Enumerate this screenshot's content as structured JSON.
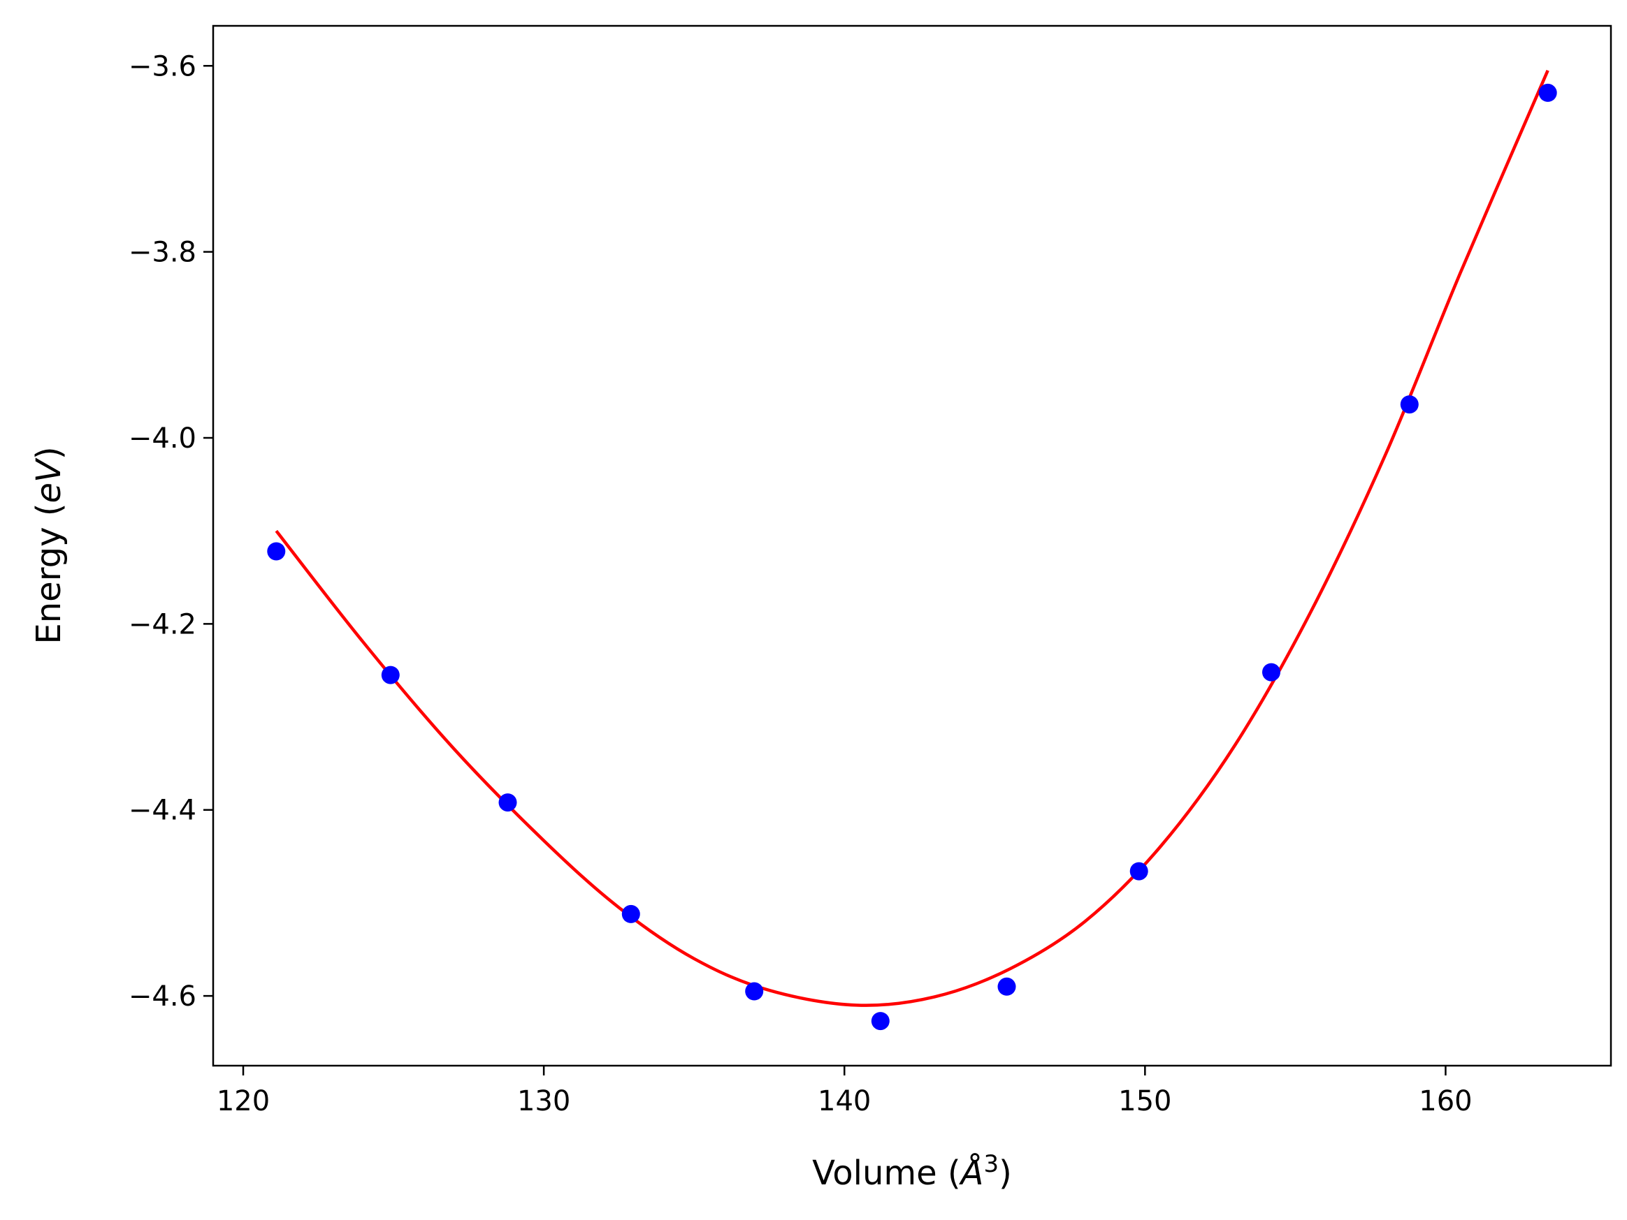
{
  "chart_data": {
    "type": "scatter",
    "xlabel": {
      "prefix": "Volume (",
      "symbol": "Å",
      "sup": "3",
      "suffix": ")"
    },
    "ylabel": {
      "prefix": "Energy (",
      "symbol": "eV",
      "suffix": ")"
    },
    "xlim": [
      119,
      165.5
    ],
    "ylim": [
      -4.675,
      -3.557
    ],
    "xticks": [
      120,
      130,
      140,
      150,
      160
    ],
    "yticks": [
      -3.6,
      -3.8,
      -4.0,
      -4.2,
      -4.4,
      -4.6
    ],
    "xtick_labels": [
      "120",
      "130",
      "140",
      "150",
      "160"
    ],
    "ytick_labels": [
      "−3.6",
      "−3.8",
      "−4.0",
      "−4.2",
      "−4.4",
      "−4.6"
    ],
    "grid": false,
    "series": [
      {
        "type": "scatter",
        "color": "#0000ff",
        "x": [
          121.1,
          124.9,
          128.8,
          132.9,
          137.0,
          141.2,
          145.4,
          149.8,
          154.2,
          158.8,
          163.4
        ],
        "y": [
          -4.122,
          -4.255,
          -4.392,
          -4.512,
          -4.595,
          -4.627,
          -4.59,
          -4.466,
          -4.252,
          -3.964,
          -3.629
        ]
      },
      {
        "type": "line",
        "color": "#ff0000",
        "x": [
          121.1,
          124.0,
          127.0,
          130.0,
          132.5,
          135.0,
          137.5,
          140.4,
          143.0,
          145.5,
          148.0,
          150.5,
          153.0,
          155.5,
          158.0,
          160.5,
          163.4
        ],
        "y": [
          -4.1,
          -4.22,
          -4.334,
          -4.433,
          -4.505,
          -4.56,
          -4.594,
          -4.61,
          -4.601,
          -4.571,
          -4.52,
          -4.44,
          -4.33,
          -4.188,
          -4.018,
          -3.822,
          -3.605
        ]
      }
    ]
  }
}
